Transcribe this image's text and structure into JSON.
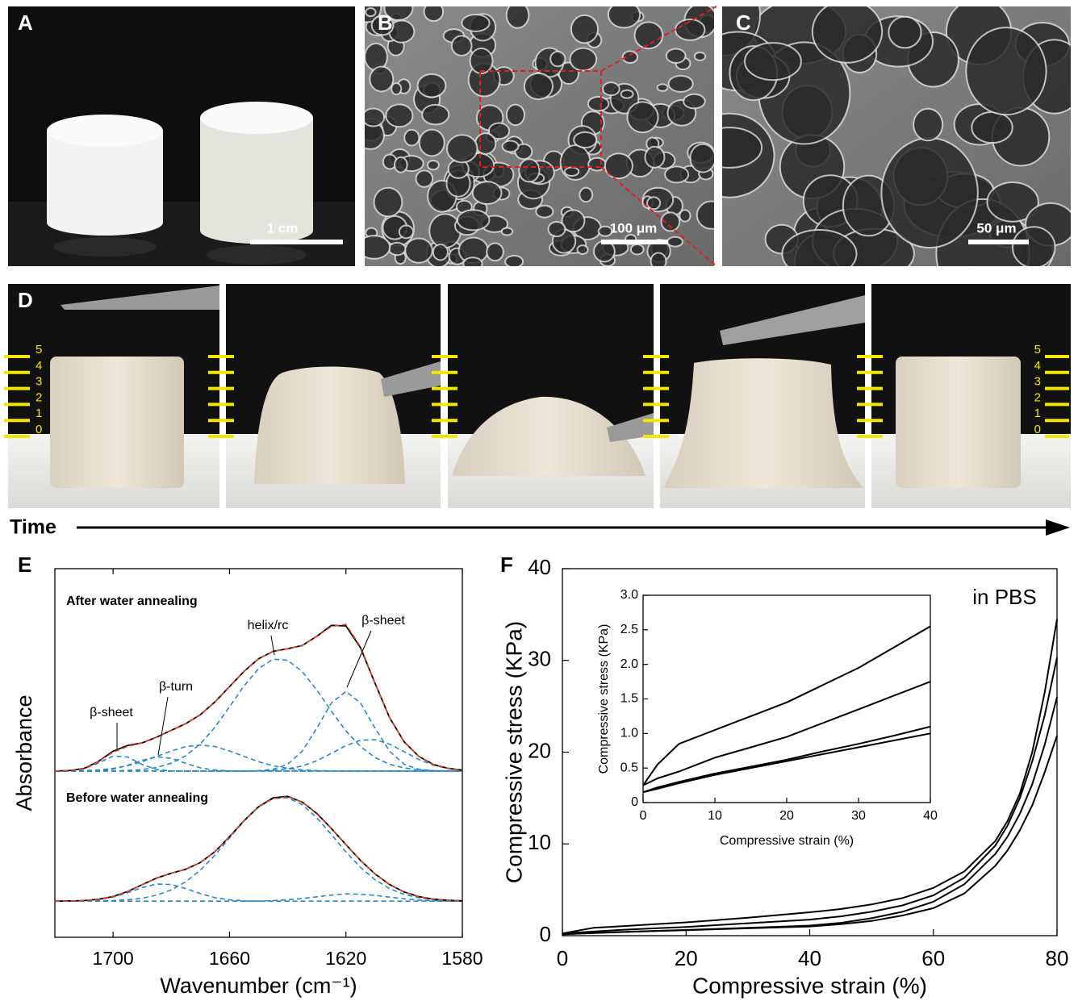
{
  "figure": {
    "panel_labels": [
      "A",
      "B",
      "C",
      "D",
      "E",
      "F"
    ],
    "scale_bars": [
      "1 cm",
      "100 μm",
      "50 μm"
    ],
    "ruler_ticks": [
      0,
      1,
      2,
      3,
      4,
      5
    ],
    "time_label": "Time"
  },
  "chart_data": [
    {
      "type": "line",
      "xlabel": "Wavenumber (cm⁻¹)",
      "ylabel": "Absorbance",
      "panel_titles": [
        "After water annealing",
        "Before water annealing"
      ],
      "annotations": [
        "β-sheet",
        "β-turn",
        "helix/rc",
        "β-sheet"
      ],
      "xlim": [
        1720,
        1580
      ],
      "xticks": [
        1700,
        1660,
        1620,
        1580
      ],
      "ylim": [
        -0.25,
        2.3
      ],
      "x": [
        1720,
        1715,
        1710,
        1705,
        1700,
        1695,
        1690,
        1685,
        1680,
        1675,
        1670,
        1665,
        1660,
        1655,
        1650,
        1645,
        1640,
        1635,
        1630,
        1625,
        1620,
        1615,
        1610,
        1605,
        1600,
        1595,
        1590,
        1585,
        1580
      ],
      "series": [
        {
          "color": "#2e86c1",
          "dash": true,
          "values": [
            0.9,
            0.902,
            0.915,
            0.956,
            1.004,
            0.997,
            0.945,
            0.91,
            0.901,
            0.9,
            0.9,
            0.9,
            0.9,
            0.9,
            0.9,
            0.9,
            0.9,
            0.9,
            0.9,
            0.9,
            0.9,
            0.9,
            0.9,
            0.9,
            0.9,
            0.9,
            0.9,
            0.9,
            0.9
          ]
        },
        {
          "color": "#2e86c1",
          "dash": true,
          "values": [
            0.9,
            0.9,
            0.9,
            0.903,
            0.914,
            0.939,
            0.975,
            0.999,
            0.988,
            0.953,
            0.922,
            0.906,
            0.901,
            0.9,
            0.9,
            0.9,
            0.9,
            0.9,
            0.9,
            0.9,
            0.9,
            0.9,
            0.9,
            0.9,
            0.9,
            0.9,
            0.9,
            0.9,
            0.9
          ]
        },
        {
          "color": "#2e86c1",
          "dash": true,
          "values": [
            0.9,
            0.9,
            0.9,
            0.9,
            0.901,
            0.904,
            0.91,
            0.925,
            0.954,
            1.006,
            1.088,
            1.203,
            1.344,
            1.489,
            1.609,
            1.674,
            1.666,
            1.588,
            1.461,
            1.314,
            1.178,
            1.069,
            0.993,
            0.947,
            0.921,
            0.909,
            0.903,
            0.901,
            0.9
          ]
        },
        {
          "color": "#2e86c1",
          "dash": true,
          "values": [
            0.9,
            0.901,
            0.903,
            0.908,
            0.918,
            0.937,
            0.965,
            1.001,
            1.039,
            1.069,
            1.08,
            1.069,
            1.039,
            1.001,
            0.965,
            0.937,
            0.918,
            0.908,
            0.903,
            0.901,
            0.9,
            0.9,
            0.9,
            0.9,
            0.9,
            0.9,
            0.9,
            0.9,
            0.9
          ]
        },
        {
          "color": "#2e86c1",
          "dash": true,
          "values": [
            0.9,
            0.9,
            0.9,
            0.9,
            0.9,
            0.9,
            0.9,
            0.9,
            0.9,
            0.9,
            0.9,
            0.9,
            0.9,
            0.9,
            0.902,
            0.912,
            0.947,
            1.037,
            1.197,
            1.371,
            1.45,
            1.371,
            1.197,
            1.037,
            0.947,
            0.912,
            0.902,
            0.9,
            0.9
          ]
        },
        {
          "color": "#2e86c1",
          "dash": true,
          "values": [
            0.9,
            0.9,
            0.9,
            0.9,
            0.9,
            0.9,
            0.9,
            0.9,
            0.9,
            0.9,
            0.9,
            0.9,
            0.9,
            0.9,
            0.901,
            0.905,
            0.915,
            0.935,
            0.971,
            1.022,
            1.076,
            1.113,
            1.117,
            1.086,
            1.034,
            0.981,
            0.941,
            0.918,
            0.906
          ]
        },
        {
          "color": "#000000",
          "dash": false,
          "values": [
            0.9,
            0.903,
            0.918,
            0.967,
            1.037,
            1.077,
            1.095,
            1.135,
            1.182,
            1.228,
            1.29,
            1.378,
            1.484,
            1.59,
            1.677,
            1.728,
            1.746,
            1.768,
            1.832,
            1.908,
            1.904,
            1.753,
            1.507,
            1.27,
            1.102,
            1.002,
            0.946,
            0.919,
            0.906
          ]
        },
        {
          "color": "#e0452b",
          "dash": true,
          "values": [
            0.9,
            0.903,
            0.918,
            0.967,
            1.03,
            1.07,
            1.095,
            1.135,
            1.182,
            1.228,
            1.29,
            1.378,
            1.484,
            1.59,
            1.677,
            1.728,
            1.746,
            1.768,
            1.832,
            1.9,
            1.915,
            1.76,
            1.507,
            1.27,
            1.102,
            1.002,
            0.946,
            0.919,
            0.906
          ]
        },
        {
          "color": "#2e86c1",
          "dash": true,
          "values": [
            0,
            0.001,
            0.003,
            0.011,
            0.028,
            0.058,
            0.094,
            0.118,
            0.115,
            0.087,
            0.052,
            0.024,
            0.009,
            0.002,
            0,
            0,
            0,
            0,
            0,
            0,
            0,
            0,
            0,
            0,
            0,
            0,
            0,
            0,
            0
          ]
        },
        {
          "color": "#2e86c1",
          "dash": true,
          "values": [
            0,
            0,
            0.001,
            0.002,
            0.004,
            0.009,
            0.02,
            0.042,
            0.078,
            0.134,
            0.215,
            0.318,
            0.437,
            0.555,
            0.652,
            0.71,
            0.716,
            0.667,
            0.577,
            0.461,
            0.341,
            0.234,
            0.148,
            0.087,
            0.047,
            0.024,
            0.011,
            0.005,
            0.002
          ]
        },
        {
          "color": "#2e86c1",
          "dash": true,
          "values": [
            0,
            0,
            0,
            0,
            0,
            0,
            0,
            0,
            0,
            0,
            0,
            0,
            0,
            0,
            0.001,
            0.004,
            0.009,
            0.018,
            0.03,
            0.042,
            0.05,
            0.048,
            0.04,
            0.028,
            0.016,
            0.008,
            0.003,
            0.001,
            0
          ]
        },
        {
          "color": "#000000",
          "dash": false,
          "values": [
            0,
            0.001,
            0.004,
            0.013,
            0.032,
            0.067,
            0.114,
            0.16,
            0.193,
            0.221,
            0.267,
            0.342,
            0.446,
            0.557,
            0.653,
            0.714,
            0.725,
            0.685,
            0.607,
            0.503,
            0.391,
            0.282,
            0.188,
            0.115,
            0.063,
            0.032,
            0.014,
            0.006,
            0.002
          ]
        },
        {
          "color": "#e0452b",
          "dash": true,
          "values": [
            0,
            0.001,
            0.004,
            0.013,
            0.032,
            0.067,
            0.114,
            0.16,
            0.193,
            0.221,
            0.267,
            0.342,
            0.446,
            0.557,
            0.653,
            0.71,
            0.722,
            0.685,
            0.603,
            0.503,
            0.391,
            0.282,
            0.188,
            0.115,
            0.063,
            0.032,
            0.014,
            0.006,
            0.002
          ]
        }
      ]
    },
    {
      "type": "line",
      "xlabel": "Compressive strain (%)",
      "ylabel": "Compressive stress (KPa)",
      "annotations": [
        "in PBS"
      ],
      "xlim": [
        0,
        80
      ],
      "xticks": [
        0,
        20,
        40,
        60,
        80
      ],
      "ylim": [
        0,
        40
      ],
      "yticks": [
        0,
        10,
        20,
        30,
        40
      ],
      "x": [
        0,
        5,
        10,
        15,
        20,
        25,
        30,
        35,
        40,
        45,
        50,
        55,
        60,
        65,
        70,
        72,
        74,
        76,
        78,
        80
      ],
      "series": [
        {
          "color": "#000000",
          "dash": false,
          "values": [
            0.25,
            0.85,
            1.05,
            1.25,
            1.45,
            1.7,
            1.95,
            2.25,
            2.55,
            2.9,
            3.4,
            4.1,
            5.2,
            7.0,
            10.3,
            12.5,
            15.5,
            20,
            26.5,
            34.5
          ]
        },
        {
          "color": "#000000",
          "dash": false,
          "values": [
            0.25,
            0.45,
            0.65,
            0.8,
            0.95,
            1.15,
            1.35,
            1.55,
            1.75,
            2.1,
            2.6,
            3.3,
            4.4,
            6.3,
            9.8,
            12,
            15,
            19,
            24,
            30.3
          ]
        },
        {
          "color": "#000000",
          "dash": false,
          "values": [
            0.15,
            0.3,
            0.42,
            0.52,
            0.62,
            0.74,
            0.85,
            0.97,
            1.1,
            1.4,
            1.9,
            2.6,
            3.7,
            5.6,
            8.9,
            10.8,
            13.3,
            16.5,
            20.8,
            26
          ]
        },
        {
          "color": "#000000",
          "dash": false,
          "values": [
            0.15,
            0.28,
            0.4,
            0.5,
            0.6,
            0.7,
            0.8,
            0.9,
            1.0,
            1.25,
            1.6,
            2.2,
            3.0,
            4.6,
            7.6,
            9.3,
            11.5,
            14.2,
            17.8,
            21.8
          ]
        }
      ]
    },
    {
      "type": "line",
      "xlabel": "Compressive strain (%)",
      "ylabel": "Compressive stress (KPa)",
      "xlim": [
        0,
        40
      ],
      "xticks": [
        0,
        10,
        20,
        30,
        40
      ],
      "ylim": [
        0,
        3
      ],
      "yticks": [
        0,
        0.5,
        {
          "value": 1,
          "label": "1.0"
        },
        1.5,
        {
          "value": 2,
          "label": "2.0"
        },
        2.5,
        {
          "value": 3,
          "label": "3.0"
        }
      ],
      "x": [
        0,
        2,
        5,
        10,
        15,
        20,
        25,
        30,
        35,
        40
      ],
      "series": [
        {
          "color": "#000000",
          "dash": false,
          "values": [
            0.25,
            0.55,
            0.85,
            1.05,
            1.25,
            1.45,
            1.7,
            1.95,
            2.25,
            2.55
          ]
        },
        {
          "color": "#000000",
          "dash": false,
          "values": [
            0.25,
            0.35,
            0.45,
            0.65,
            0.8,
            0.95,
            1.15,
            1.35,
            1.55,
            1.75
          ]
        },
        {
          "color": "#000000",
          "dash": false,
          "values": [
            0.15,
            0.22,
            0.3,
            0.42,
            0.52,
            0.62,
            0.74,
            0.85,
            0.97,
            1.1
          ]
        },
        {
          "color": "#000000",
          "dash": false,
          "values": [
            0.15,
            0.2,
            0.28,
            0.4,
            0.5,
            0.6,
            0.7,
            0.8,
            0.9,
            1.0
          ]
        }
      ]
    }
  ]
}
